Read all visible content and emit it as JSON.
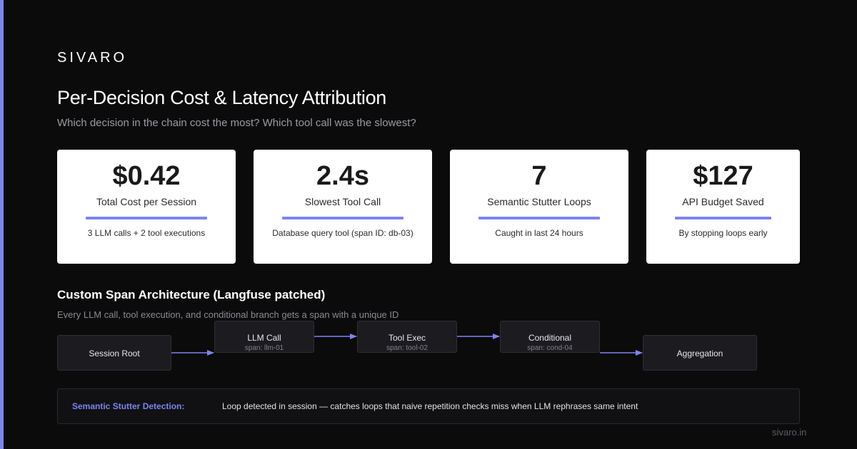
{
  "brand": "SIVARO",
  "title": "Per-Decision Cost & Latency Attribution",
  "subtitle": "Which decision in the chain cost the most? Which tool call was the slowest?",
  "metrics": [
    {
      "value": "$0.42",
      "label": "Total Cost per Session",
      "desc": "3 LLM calls + 2 tool executions"
    },
    {
      "value": "2.4s",
      "label": "Slowest Tool Call",
      "desc": "Database query tool (span ID: db-03)"
    },
    {
      "value": "7",
      "label": "Semantic Stutter Loops",
      "desc": "Caught in last 24 hours"
    },
    {
      "value": "$127",
      "label": "API Budget Saved",
      "desc": "By stopping loops early"
    }
  ],
  "architecture": {
    "title": "Custom Span Architecture (Langfuse patched)",
    "subtitle": "Every LLM call, tool execution, and conditional branch gets a span with a unique ID",
    "nodes": [
      {
        "name": "Session Root",
        "span": ""
      },
      {
        "name": "LLM Call",
        "span": "span: llm-01"
      },
      {
        "name": "Tool Exec",
        "span": "span: tool-02"
      },
      {
        "name": "Conditional",
        "span": "span: cond-04"
      },
      {
        "name": "Aggregation",
        "span": ""
      }
    ]
  },
  "banner": {
    "label": "Semantic Stutter Detection:",
    "text": "Loop detected in session — catches loops that naive repetition checks miss when LLM rephrases same intent"
  },
  "footer": "sivaro.in",
  "colors": {
    "accent": "#7c85f0",
    "background": "#0b0b0c",
    "card": "#ffffff"
  }
}
